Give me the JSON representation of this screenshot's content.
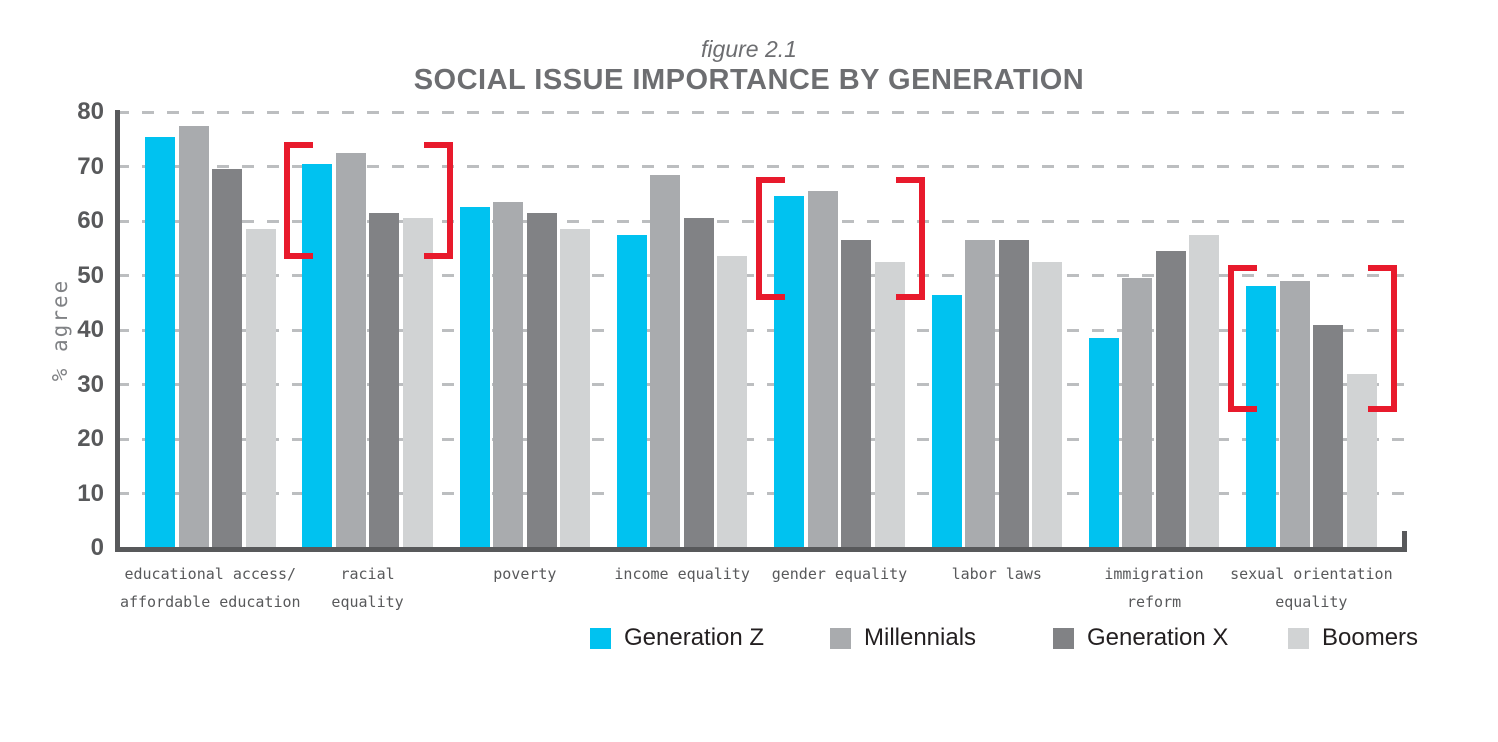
{
  "figure": {
    "label": "figure 2.1",
    "title": "SOCIAL ISSUE IMPORTANCE BY GENERATION"
  },
  "chart_data": {
    "type": "bar",
    "figure_label": "figure 2.1",
    "title": "SOCIAL ISSUE IMPORTANCE BY GENERATION",
    "xlabel": "",
    "ylabel": "% agree",
    "ylim": [
      0,
      80
    ],
    "yticks": [
      0,
      10,
      20,
      30,
      40,
      50,
      60,
      70,
      80
    ],
    "grid": "horizontal dashed",
    "legend_position": "bottom",
    "categories": [
      "educational access/\naffordable education",
      "racial\nequality",
      "poverty",
      "income equality",
      "gender equality",
      "labor laws",
      "immigration\nreform",
      "sexual orientation\nequality"
    ],
    "series": [
      {
        "name": "Generation Z",
        "color": "#00c2f0",
        "values": [
          75.5,
          70.5,
          62.5,
          57.5,
          64.5,
          46.5,
          38.5,
          48
        ]
      },
      {
        "name": "Millennials",
        "color": "#a9abae",
        "values": [
          77.5,
          72.5,
          63.5,
          68.5,
          65.5,
          56.5,
          49.5,
          49
        ]
      },
      {
        "name": "Generation X",
        "color": "#818285",
        "values": [
          69.5,
          61.5,
          61.5,
          60.5,
          56.5,
          56.5,
          54.5,
          41
        ]
      },
      {
        "name": "Boomers",
        "color": "#d1d3d4",
        "values": [
          58.5,
          60.5,
          58.5,
          53.5,
          52.5,
          52.5,
          57.5,
          32
        ]
      }
    ],
    "annotations": {
      "shape": "red emphasis brackets around category group",
      "color": "#e81a2c",
      "items": [
        {
          "category": "racial equality",
          "category_index": 1,
          "top_value": 74.5,
          "bottom_value": 53
        },
        {
          "category": "gender equality",
          "category_index": 4,
          "top_value": 68,
          "bottom_value": 45.5
        },
        {
          "category": "sexual orientation equality",
          "category_index": 7,
          "top_value": 52,
          "bottom_value": 25
        }
      ]
    },
    "colors": {
      "axis": "#58595b",
      "grid": "#bcbec0",
      "title": "#6d6e71",
      "tick_label": "#58595b",
      "y_axis_label": "#808285",
      "legend_text": "#231f20",
      "background": "#ffffff"
    }
  }
}
